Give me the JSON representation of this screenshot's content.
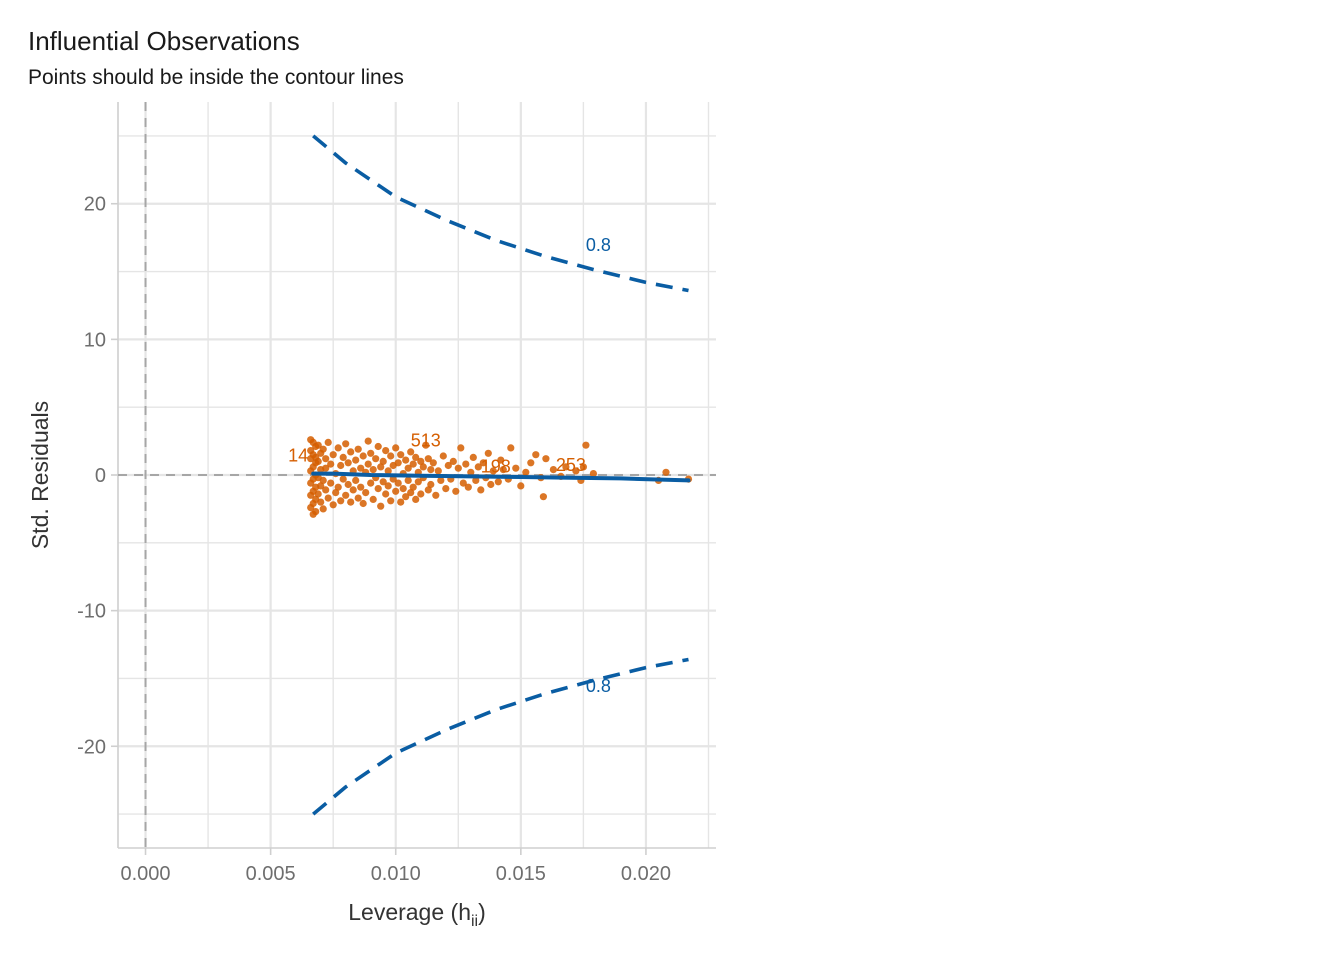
{
  "chart_data": {
    "type": "scatter",
    "title": "Influential Observations",
    "subtitle": "Points should be inside the contour lines",
    "xlabel": "Leverage (h",
    "xlabel_sub": "ii",
    "xlabel_close": ")",
    "ylabel": "Std. Residuals",
    "xlim": [
      -0.0011,
      0.0228
    ],
    "ylim": [
      -27.5,
      27.5
    ],
    "x_ticks": [
      0.0,
      0.005,
      0.01,
      0.015,
      0.02
    ],
    "x_tick_labels": [
      "0.000",
      "0.005",
      "0.010",
      "0.015",
      "0.020"
    ],
    "y_ticks": [
      -20,
      -10,
      0,
      10,
      20
    ],
    "y_tick_labels": [
      "-20",
      "-10",
      "0",
      "10",
      "20"
    ],
    "grid": true,
    "reference_lines": {
      "x": 0,
      "y": 0
    },
    "colors": {
      "points": "#D55E00",
      "contour": "#0A5DA3",
      "smooth": "#0A5DA3",
      "grid": "#E5E5E5",
      "reference": "#A6A6A6",
      "text": "#333333",
      "tick_text": "#6E6E6E"
    },
    "contour": {
      "level_label": "0.8",
      "upper": [
        [
          0.0067,
          25.0
        ],
        [
          0.008,
          23.0
        ],
        [
          0.01,
          20.5
        ],
        [
          0.012,
          18.8
        ],
        [
          0.014,
          17.3
        ],
        [
          0.016,
          16.1
        ],
        [
          0.018,
          15.1
        ],
        [
          0.02,
          14.2
        ],
        [
          0.0217,
          13.6
        ]
      ],
      "lower": [
        [
          0.0067,
          -25.0
        ],
        [
          0.008,
          -23.0
        ],
        [
          0.01,
          -20.5
        ],
        [
          0.012,
          -18.8
        ],
        [
          0.014,
          -17.3
        ],
        [
          0.016,
          -16.1
        ],
        [
          0.018,
          -15.1
        ],
        [
          0.02,
          -14.2
        ],
        [
          0.0217,
          -13.6
        ]
      ],
      "label_positions": [
        [
          0.0181,
          16.5
        ],
        [
          0.0181,
          -16.0
        ]
      ]
    },
    "smooth_line": [
      [
        0.0067,
        0.1
      ],
      [
        0.0075,
        0.1
      ],
      [
        0.009,
        0.0
      ],
      [
        0.011,
        -0.05
      ],
      [
        0.013,
        -0.1
      ],
      [
        0.015,
        -0.15
      ],
      [
        0.017,
        -0.2
      ],
      [
        0.019,
        -0.25
      ],
      [
        0.0217,
        -0.4
      ]
    ],
    "labeled_points": [
      {
        "label": "513",
        "x": 0.0112,
        "y": 2.1
      },
      {
        "label": "14",
        "x": 0.0061,
        "y": 1.0
      },
      {
        "label": "198",
        "x": 0.014,
        "y": 0.2
      },
      {
        "label": "253",
        "x": 0.017,
        "y": 0.3
      }
    ],
    "points": [
      {
        "x": 0.0112,
        "y": 2.2
      },
      {
        "x": 0.0068,
        "y": 1.3
      },
      {
        "x": 0.0143,
        "y": 0.4
      },
      {
        "x": 0.0175,
        "y": 0.6
      },
      {
        "x": 0.0066,
        "y": 2.6
      },
      {
        "x": 0.0067,
        "y": 2.4
      },
      {
        "x": 0.0068,
        "y": 2.1
      },
      {
        "x": 0.0066,
        "y": 1.8
      },
      {
        "x": 0.0067,
        "y": 1.5
      },
      {
        "x": 0.0066,
        "y": 1.2
      },
      {
        "x": 0.0068,
        "y": 0.9
      },
      {
        "x": 0.0067,
        "y": 0.6
      },
      {
        "x": 0.0066,
        "y": 0.3
      },
      {
        "x": 0.0068,
        "y": 0.0
      },
      {
        "x": 0.0067,
        "y": -0.3
      },
      {
        "x": 0.0066,
        "y": -0.6
      },
      {
        "x": 0.0068,
        "y": -0.9
      },
      {
        "x": 0.0067,
        "y": -1.2
      },
      {
        "x": 0.0066,
        "y": -1.5
      },
      {
        "x": 0.0068,
        "y": -1.8
      },
      {
        "x": 0.0067,
        "y": -2.1
      },
      {
        "x": 0.0066,
        "y": -2.4
      },
      {
        "x": 0.0068,
        "y": -2.7
      },
      {
        "x": 0.0067,
        "y": -2.9
      },
      {
        "x": 0.0069,
        "y": 2.2
      },
      {
        "x": 0.007,
        "y": 1.6
      },
      {
        "x": 0.0069,
        "y": 1.0
      },
      {
        "x": 0.007,
        "y": 0.4
      },
      {
        "x": 0.0069,
        "y": -0.2
      },
      {
        "x": 0.007,
        "y": -0.8
      },
      {
        "x": 0.0069,
        "y": -1.4
      },
      {
        "x": 0.007,
        "y": -2.0
      },
      {
        "x": 0.0071,
        "y": -2.5
      },
      {
        "x": 0.0071,
        "y": 1.9
      },
      {
        "x": 0.0072,
        "y": 1.2
      },
      {
        "x": 0.0072,
        "y": 0.5
      },
      {
        "x": 0.0071,
        "y": -0.4
      },
      {
        "x": 0.0072,
        "y": -1.1
      },
      {
        "x": 0.0073,
        "y": -1.7
      },
      {
        "x": 0.0073,
        "y": 2.4
      },
      {
        "x": 0.0074,
        "y": 0.8
      },
      {
        "x": 0.0074,
        "y": -0.6
      },
      {
        "x": 0.0075,
        "y": -2.2
      },
      {
        "x": 0.0075,
        "y": 1.5
      },
      {
        "x": 0.0076,
        "y": 0.1
      },
      {
        "x": 0.0076,
        "y": -1.3
      },
      {
        "x": 0.0077,
        "y": 2.0
      },
      {
        "x": 0.0077,
        "y": -0.9
      },
      {
        "x": 0.0078,
        "y": 0.7
      },
      {
        "x": 0.0078,
        "y": -1.9
      },
      {
        "x": 0.0079,
        "y": 1.3
      },
      {
        "x": 0.0079,
        "y": -0.3
      },
      {
        "x": 0.008,
        "y": 2.3
      },
      {
        "x": 0.008,
        "y": -1.5
      },
      {
        "x": 0.0081,
        "y": 0.9
      },
      {
        "x": 0.0081,
        "y": -0.7
      },
      {
        "x": 0.0082,
        "y": 1.7
      },
      {
        "x": 0.0082,
        "y": -2.0
      },
      {
        "x": 0.0083,
        "y": 0.3
      },
      {
        "x": 0.0083,
        "y": -1.1
      },
      {
        "x": 0.0084,
        "y": 1.1
      },
      {
        "x": 0.0084,
        "y": -0.4
      },
      {
        "x": 0.0085,
        "y": 1.9
      },
      {
        "x": 0.0085,
        "y": -1.7
      },
      {
        "x": 0.0086,
        "y": 0.5
      },
      {
        "x": 0.0086,
        "y": -0.9
      },
      {
        "x": 0.0087,
        "y": 1.4
      },
      {
        "x": 0.0087,
        "y": -2.1
      },
      {
        "x": 0.0088,
        "y": 0.2
      },
      {
        "x": 0.0088,
        "y": -1.3
      },
      {
        "x": 0.0089,
        "y": 2.5
      },
      {
        "x": 0.0089,
        "y": 0.8
      },
      {
        "x": 0.009,
        "y": -0.6
      },
      {
        "x": 0.009,
        "y": 1.6
      },
      {
        "x": 0.0091,
        "y": -1.8
      },
      {
        "x": 0.0091,
        "y": 0.4
      },
      {
        "x": 0.0092,
        "y": 1.2
      },
      {
        "x": 0.0092,
        "y": -0.2
      },
      {
        "x": 0.0093,
        "y": -1.0
      },
      {
        "x": 0.0093,
        "y": 2.1
      },
      {
        "x": 0.0094,
        "y": 0.6
      },
      {
        "x": 0.0094,
        "y": -2.3
      },
      {
        "x": 0.0095,
        "y": 1.0
      },
      {
        "x": 0.0095,
        "y": -0.5
      },
      {
        "x": 0.0096,
        "y": 1.8
      },
      {
        "x": 0.0096,
        "y": -1.4
      },
      {
        "x": 0.0097,
        "y": 0.3
      },
      {
        "x": 0.0097,
        "y": -0.8
      },
      {
        "x": 0.0098,
        "y": 1.4
      },
      {
        "x": 0.0098,
        "y": -1.9
      },
      {
        "x": 0.0099,
        "y": 0.7
      },
      {
        "x": 0.0099,
        "y": -0.3
      },
      {
        "x": 0.01,
        "y": 2.0
      },
      {
        "x": 0.01,
        "y": -1.2
      },
      {
        "x": 0.0101,
        "y": 0.9
      },
      {
        "x": 0.0101,
        "y": -0.6
      },
      {
        "x": 0.0102,
        "y": 1.5
      },
      {
        "x": 0.0102,
        "y": -2.0
      },
      {
        "x": 0.0103,
        "y": 0.1
      },
      {
        "x": 0.0103,
        "y": -1.0
      },
      {
        "x": 0.0104,
        "y": 1.1
      },
      {
        "x": 0.0104,
        "y": -1.6
      },
      {
        "x": 0.0105,
        "y": 0.5
      },
      {
        "x": 0.0105,
        "y": -0.4
      },
      {
        "x": 0.0106,
        "y": 1.7
      },
      {
        "x": 0.0106,
        "y": -1.3
      },
      {
        "x": 0.0107,
        "y": 0.8
      },
      {
        "x": 0.0107,
        "y": -0.9
      },
      {
        "x": 0.0108,
        "y": 1.3
      },
      {
        "x": 0.0108,
        "y": -1.8
      },
      {
        "x": 0.0109,
        "y": 0.2
      },
      {
        "x": 0.0109,
        "y": -0.5
      },
      {
        "x": 0.011,
        "y": 1.0
      },
      {
        "x": 0.011,
        "y": -1.4
      },
      {
        "x": 0.0111,
        "y": 0.6
      },
      {
        "x": 0.0111,
        "y": -0.2
      },
      {
        "x": 0.0113,
        "y": 1.2
      },
      {
        "x": 0.0113,
        "y": -1.1
      },
      {
        "x": 0.0114,
        "y": 0.4
      },
      {
        "x": 0.0114,
        "y": -0.7
      },
      {
        "x": 0.0115,
        "y": 0.9
      },
      {
        "x": 0.0116,
        "y": -1.5
      },
      {
        "x": 0.0117,
        "y": 0.3
      },
      {
        "x": 0.0118,
        "y": -0.4
      },
      {
        "x": 0.0119,
        "y": 1.4
      },
      {
        "x": 0.012,
        "y": -1.0
      },
      {
        "x": 0.0121,
        "y": 0.7
      },
      {
        "x": 0.0122,
        "y": -0.3
      },
      {
        "x": 0.0123,
        "y": 1.0
      },
      {
        "x": 0.0124,
        "y": -1.2
      },
      {
        "x": 0.0125,
        "y": 0.5
      },
      {
        "x": 0.0126,
        "y": 2.0
      },
      {
        "x": 0.0127,
        "y": -0.6
      },
      {
        "x": 0.0128,
        "y": 0.8
      },
      {
        "x": 0.0129,
        "y": -0.9
      },
      {
        "x": 0.013,
        "y": 0.2
      },
      {
        "x": 0.0131,
        "y": 1.3
      },
      {
        "x": 0.0132,
        "y": -0.4
      },
      {
        "x": 0.0133,
        "y": 0.6
      },
      {
        "x": 0.0134,
        "y": -1.1
      },
      {
        "x": 0.0135,
        "y": 0.9
      },
      {
        "x": 0.0136,
        "y": -0.2
      },
      {
        "x": 0.0137,
        "y": 1.6
      },
      {
        "x": 0.0138,
        "y": -0.7
      },
      {
        "x": 0.0139,
        "y": 0.3
      },
      {
        "x": 0.0141,
        "y": -0.5
      },
      {
        "x": 0.0142,
        "y": 1.1
      },
      {
        "x": 0.0145,
        "y": -0.3
      },
      {
        "x": 0.0146,
        "y": 2.0
      },
      {
        "x": 0.0148,
        "y": 0.5
      },
      {
        "x": 0.015,
        "y": -0.8
      },
      {
        "x": 0.0152,
        "y": 0.2
      },
      {
        "x": 0.0154,
        "y": 0.9
      },
      {
        "x": 0.0156,
        "y": 1.5
      },
      {
        "x": 0.0158,
        "y": -0.2
      },
      {
        "x": 0.0159,
        "y": -1.6
      },
      {
        "x": 0.016,
        "y": 1.2
      },
      {
        "x": 0.0163,
        "y": 0.4
      },
      {
        "x": 0.0166,
        "y": -0.1
      },
      {
        "x": 0.0168,
        "y": 0.6
      },
      {
        "x": 0.0172,
        "y": 0.3
      },
      {
        "x": 0.0174,
        "y": -0.4
      },
      {
        "x": 0.0176,
        "y": 2.2
      },
      {
        "x": 0.0179,
        "y": 0.1
      },
      {
        "x": 0.0205,
        "y": -0.4
      },
      {
        "x": 0.0208,
        "y": 0.2
      },
      {
        "x": 0.0217,
        "y": -0.3
      }
    ]
  }
}
